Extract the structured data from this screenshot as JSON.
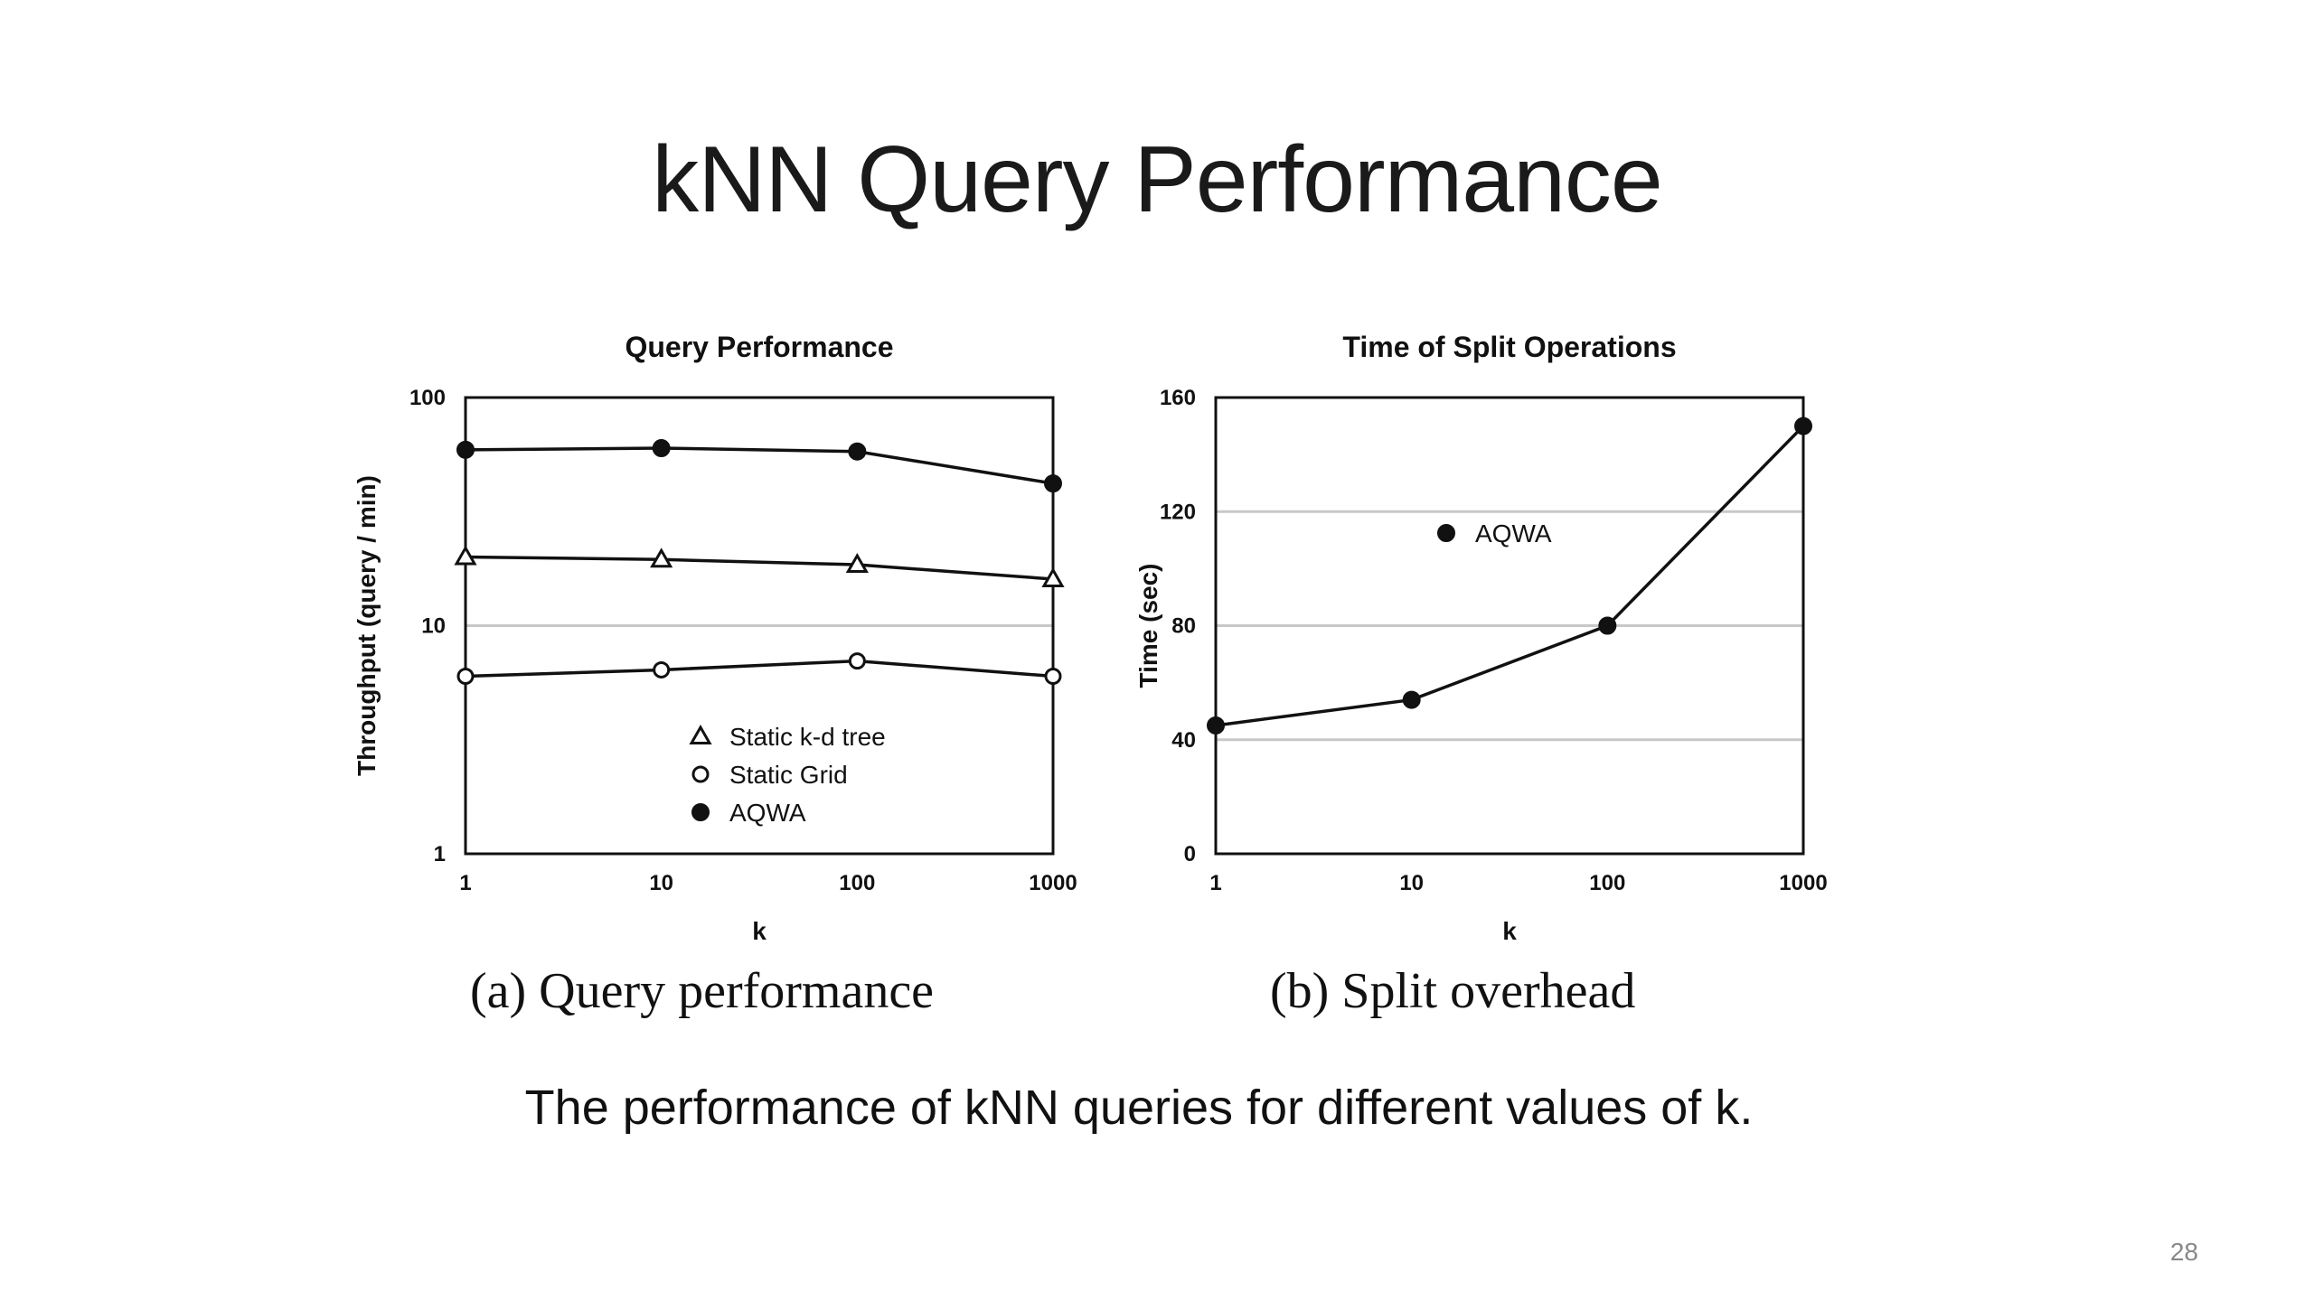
{
  "slide": {
    "title": "kNN Query Performance",
    "caption": "The performance of kNN queries for different values of k.",
    "page_number": "28"
  },
  "chart_data": [
    {
      "type": "line",
      "title": "Query Performance",
      "xlabel": "k",
      "ylabel": "Throughput (query / min)",
      "x_scale": "log",
      "y_scale": "log",
      "x": [
        1,
        10,
        100,
        1000
      ],
      "x_tick_labels": [
        "1",
        "10",
        "100",
        "1000"
      ],
      "y_tick_labels": [
        "1",
        "10",
        "100"
      ],
      "y_ticks": [
        1,
        10,
        100
      ],
      "ylim": [
        1,
        100
      ],
      "grid": "horizontal",
      "legend_position": "center-bottom",
      "series": [
        {
          "name": "Static k-d tree",
          "marker": "open-triangle",
          "values": [
            20,
            19.5,
            18.5,
            16
          ]
        },
        {
          "name": "Static Grid",
          "marker": "open-circle",
          "values": [
            6,
            6.4,
            7,
            6
          ]
        },
        {
          "name": "AQWA",
          "marker": "filled-circle",
          "values": [
            59,
            60,
            58,
            42
          ]
        }
      ],
      "sub_caption": "(a) Query performance"
    },
    {
      "type": "line",
      "title": "Time of Split Operations",
      "xlabel": "k",
      "ylabel": "Time (sec)",
      "x_scale": "log",
      "y_scale": "linear",
      "x": [
        1,
        10,
        100,
        1000
      ],
      "x_tick_labels": [
        "1",
        "10",
        "100",
        "1000"
      ],
      "y_tick_labels": [
        "0",
        "40",
        "80",
        "120",
        "160"
      ],
      "y_ticks": [
        0,
        40,
        80,
        120,
        160
      ],
      "ylim": [
        0,
        160
      ],
      "grid": "horizontal",
      "legend_position": "center",
      "series": [
        {
          "name": "AQWA",
          "marker": "filled-circle",
          "values": [
            45,
            54,
            80,
            150
          ]
        }
      ],
      "sub_caption": "(b) Split overhead"
    }
  ],
  "colors": {
    "line": "#111111",
    "grid": "#c8c8c8",
    "text": "#111111",
    "page_number": "#888888"
  }
}
